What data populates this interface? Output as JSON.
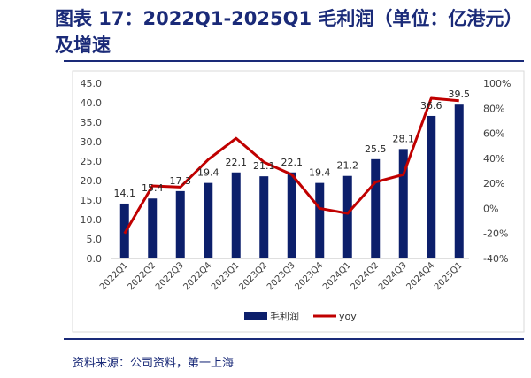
{
  "title": "图表 17：2022Q1-2025Q1 毛利润（单位：亿港元）及增速",
  "source": "资料来源：公司资料，第一上海",
  "colors": {
    "bar": "#0c1f6b",
    "line": "#c00000",
    "title": "#1a2a78"
  },
  "chart_data": {
    "type": "bar",
    "title": "",
    "xlabel": "",
    "ylabel": "",
    "categories": [
      "2022Q1",
      "2022Q2",
      "2022Q3",
      "2022Q4",
      "2023Q1",
      "2023Q2",
      "2023Q3",
      "2023Q4",
      "2024Q1",
      "2024Q2",
      "2024Q3",
      "2024Q4",
      "2025Q1"
    ],
    "series": [
      {
        "name": "毛利润",
        "type": "bar",
        "axis": "left",
        "values": [
          14.1,
          15.4,
          17.3,
          19.4,
          22.1,
          21.1,
          22.1,
          19.4,
          21.2,
          25.5,
          28.1,
          36.6,
          39.5
        ],
        "labels": [
          "14.1",
          "15.4",
          "17.3",
          "19.4",
          "22.1",
          "21.1",
          "22.1",
          "19.4",
          "21.2",
          "25.5",
          "28.1",
          "36.6",
          "39.5"
        ]
      },
      {
        "name": "yoy",
        "type": "line",
        "axis": "right",
        "values": [
          -20,
          18,
          17,
          39,
          56,
          37,
          27,
          0,
          -4,
          21,
          27,
          88,
          86
        ]
      }
    ],
    "ylim": [
      0,
      45
    ],
    "yticks": [
      "0.0",
      "5.0",
      "10.0",
      "15.0",
      "20.0",
      "25.0",
      "30.0",
      "35.0",
      "40.0",
      "45.0"
    ],
    "y2lim": [
      -40,
      100
    ],
    "y2ticks": [
      "-40%",
      "-20%",
      "0%",
      "20%",
      "40%",
      "60%",
      "80%",
      "100%"
    ],
    "legend": "bottom"
  }
}
